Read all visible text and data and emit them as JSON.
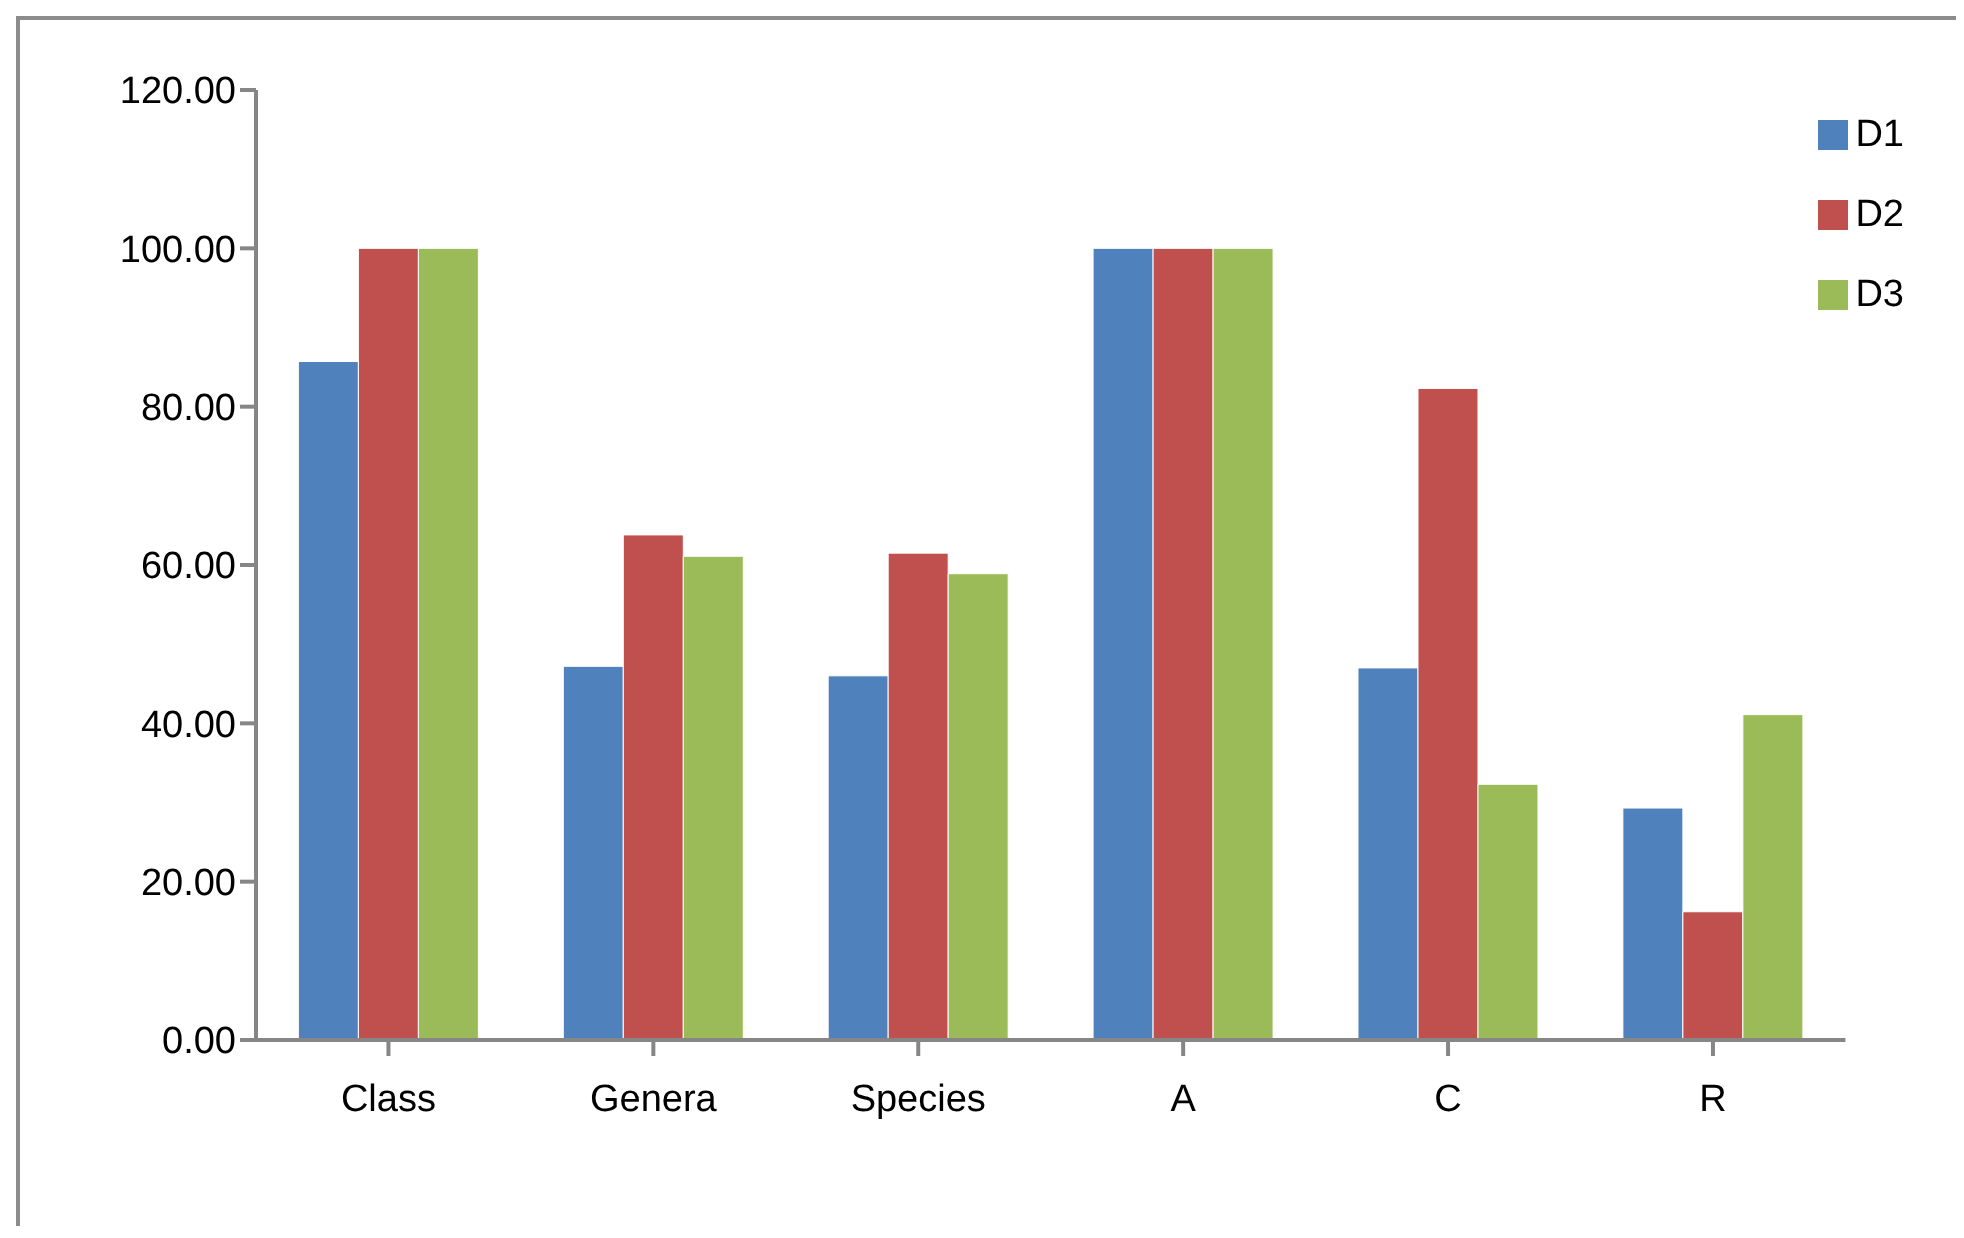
{
  "chart_data": {
    "type": "bar",
    "categories": [
      "Class",
      "Genera",
      "Species",
      "A",
      "C",
      "R"
    ],
    "series": [
      {
        "name": "D1",
        "color": "#4f81bd",
        "values": [
          85.7,
          47.2,
          46.0,
          100,
          47.0,
          29.3
        ]
      },
      {
        "name": "D2",
        "color": "#c0504d",
        "values": [
          100,
          63.8,
          61.5,
          100,
          82.3,
          16.2
        ]
      },
      {
        "name": "D3",
        "color": "#9bbb59",
        "values": [
          100,
          61.1,
          58.9,
          100,
          32.3,
          41.1
        ]
      }
    ],
    "ylim": [
      0,
      120
    ],
    "yticks": [
      {
        "value": 0,
        "label": "0.00"
      },
      {
        "value": 20,
        "label": "20.00"
      },
      {
        "value": 40,
        "label": "40.00"
      },
      {
        "value": 60,
        "label": "60.00"
      },
      {
        "value": 80,
        "label": "80.00"
      },
      {
        "value": 100,
        "label": "100.00"
      },
      {
        "value": 120,
        "label": "120.00"
      }
    ],
    "grid": false,
    "legend": "top right"
  }
}
